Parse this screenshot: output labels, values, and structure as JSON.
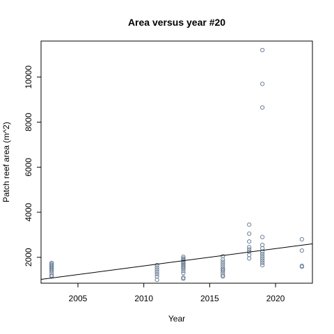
{
  "chart_data": {
    "type": "scatter",
    "title": "Area versus year #20",
    "xlabel": "Year",
    "ylabel": "Patch reef area (m^2)",
    "xlim": [
      2002.2,
      2022.8
    ],
    "ylim": [
      850,
      11600
    ],
    "xticks": [
      2005,
      2010,
      2015,
      2020
    ],
    "yticks": [
      2000,
      4000,
      6000,
      8000,
      10000
    ],
    "grid": false,
    "point_color": "#6b7f96",
    "points": [
      {
        "x": 2003,
        "y": 1750
      },
      {
        "x": 2003,
        "y": 1700
      },
      {
        "x": 2003,
        "y": 1650
      },
      {
        "x": 2003,
        "y": 1600
      },
      {
        "x": 2003,
        "y": 1550
      },
      {
        "x": 2003,
        "y": 1500
      },
      {
        "x": 2003,
        "y": 1450
      },
      {
        "x": 2003,
        "y": 1400
      },
      {
        "x": 2003,
        "y": 1300
      },
      {
        "x": 2003,
        "y": 1200
      },
      {
        "x": 2003,
        "y": 1150
      },
      {
        "x": 2011,
        "y": 1650
      },
      {
        "x": 2011,
        "y": 1550
      },
      {
        "x": 2011,
        "y": 1450
      },
      {
        "x": 2011,
        "y": 1350
      },
      {
        "x": 2011,
        "y": 1250
      },
      {
        "x": 2011,
        "y": 1150
      },
      {
        "x": 2011,
        "y": 1000
      },
      {
        "x": 2013,
        "y": 2020
      },
      {
        "x": 2013,
        "y": 1950
      },
      {
        "x": 2013,
        "y": 1900
      },
      {
        "x": 2013,
        "y": 1850
      },
      {
        "x": 2013,
        "y": 1800
      },
      {
        "x": 2013,
        "y": 1750
      },
      {
        "x": 2013,
        "y": 1700
      },
      {
        "x": 2013,
        "y": 1650
      },
      {
        "x": 2013,
        "y": 1600
      },
      {
        "x": 2013,
        "y": 1550
      },
      {
        "x": 2013,
        "y": 1500
      },
      {
        "x": 2013,
        "y": 1400
      },
      {
        "x": 2013,
        "y": 1300
      },
      {
        "x": 2013,
        "y": 1100
      },
      {
        "x": 2013,
        "y": 1050
      },
      {
        "x": 2016,
        "y": 2050
      },
      {
        "x": 2016,
        "y": 1900
      },
      {
        "x": 2016,
        "y": 1800
      },
      {
        "x": 2016,
        "y": 1700
      },
      {
        "x": 2016,
        "y": 1600
      },
      {
        "x": 2016,
        "y": 1500
      },
      {
        "x": 2016,
        "y": 1450
      },
      {
        "x": 2016,
        "y": 1400
      },
      {
        "x": 2016,
        "y": 1300
      },
      {
        "x": 2016,
        "y": 1200
      },
      {
        "x": 2016,
        "y": 1150
      },
      {
        "x": 2018,
        "y": 3450
      },
      {
        "x": 2018,
        "y": 3050
      },
      {
        "x": 2018,
        "y": 2700
      },
      {
        "x": 2018,
        "y": 2450
      },
      {
        "x": 2018,
        "y": 2350
      },
      {
        "x": 2018,
        "y": 2250
      },
      {
        "x": 2018,
        "y": 2100
      },
      {
        "x": 2018,
        "y": 1950
      },
      {
        "x": 2019,
        "y": 11200
      },
      {
        "x": 2019,
        "y": 9700
      },
      {
        "x": 2019,
        "y": 8650
      },
      {
        "x": 2019,
        "y": 2900
      },
      {
        "x": 2019,
        "y": 2550
      },
      {
        "x": 2019,
        "y": 2400
      },
      {
        "x": 2019,
        "y": 2250
      },
      {
        "x": 2019,
        "y": 2150
      },
      {
        "x": 2019,
        "y": 2050
      },
      {
        "x": 2019,
        "y": 1950
      },
      {
        "x": 2019,
        "y": 1850
      },
      {
        "x": 2019,
        "y": 1750
      },
      {
        "x": 2019,
        "y": 1650
      },
      {
        "x": 2022,
        "y": 2800
      },
      {
        "x": 2022,
        "y": 2300
      },
      {
        "x": 2022,
        "y": 1620
      },
      {
        "x": 2022,
        "y": 1580
      }
    ],
    "fit_line": [
      {
        "x": 2002.2,
        "y": 1020
      },
      {
        "x": 2022.8,
        "y": 2600
      }
    ]
  }
}
